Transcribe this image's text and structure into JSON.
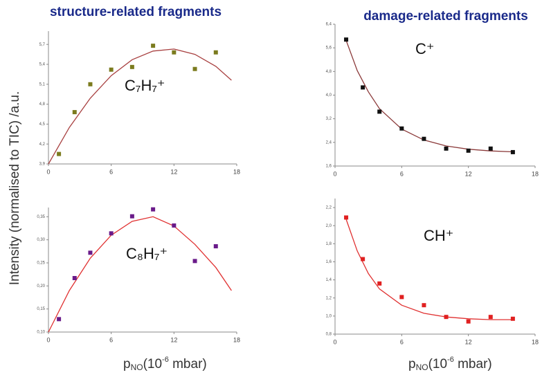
{
  "headers": [
    "structure-related fragments",
    "damage-related fragments"
  ],
  "y_label": "Intensity (normalised to TIC) /a.u.",
  "x_label": [
    "p",
    "NO",
    "(10",
    "-6",
    " mbar)"
  ],
  "chart_data": [
    {
      "type": "scatter",
      "annotation": "C₇H₇⁺",
      "color": "#7b7b1e",
      "fit_color": "#a84040",
      "x": [
        1,
        2.5,
        4,
        6,
        8,
        10,
        12,
        14,
        16
      ],
      "values": [
        4.05,
        4.68,
        5.1,
        5.32,
        5.36,
        5.68,
        5.58,
        5.33,
        5.58
      ],
      "fit_x": [
        0,
        2,
        4,
        6,
        8,
        10,
        12,
        14,
        16,
        17.5
      ],
      "fit_values": [
        3.9,
        4.45,
        4.89,
        5.23,
        5.47,
        5.6,
        5.63,
        5.55,
        5.37,
        5.16
      ],
      "xlim": [
        0,
        18
      ],
      "xticks": [
        0,
        6,
        12,
        18
      ],
      "ylim": [
        3.9,
        5.9
      ],
      "yticks": [
        {
          "value": 3.9,
          "label": "3,9"
        },
        {
          "value": 4.2,
          "label": "4,2"
        },
        {
          "value": 4.5,
          "label": "4,5"
        },
        {
          "value": 4.8,
          "label": "4,8"
        },
        {
          "value": 5.1,
          "label": "5,1"
        },
        {
          "value": 5.4,
          "label": "5,4"
        },
        {
          "value": 5.7,
          "label": "5,7"
        }
      ]
    },
    {
      "type": "scatter",
      "annotation": "C₈H₇⁺",
      "color": "#6a1b8a",
      "fit_color": "#e03030",
      "x": [
        1,
        2.5,
        4,
        6,
        8,
        10,
        12,
        14,
        16
      ],
      "values": [
        0.128,
        0.217,
        0.272,
        0.314,
        0.351,
        0.366,
        0.331,
        0.254,
        0.286
      ],
      "fit_x": [
        0,
        2,
        4,
        6,
        8,
        10,
        12,
        14,
        16,
        17.5
      ],
      "fit_values": [
        0.1,
        0.19,
        0.26,
        0.31,
        0.34,
        0.35,
        0.33,
        0.29,
        0.24,
        0.19
      ],
      "xlim": [
        0,
        18
      ],
      "xticks": [
        0,
        6,
        12,
        18
      ],
      "ylim": [
        0.1,
        0.37
      ],
      "yticks": [
        {
          "value": 0.1,
          "label": "0,10"
        },
        {
          "value": 0.15,
          "label": "0,15"
        },
        {
          "value": 0.2,
          "label": "0,20"
        },
        {
          "value": 0.25,
          "label": "0,25"
        },
        {
          "value": 0.3,
          "label": "0,30"
        },
        {
          "value": 0.35,
          "label": "0,35"
        }
      ]
    },
    {
      "type": "scatter",
      "annotation": "C⁺",
      "color": "#111111",
      "fit_color": "#8b3a3a",
      "x": [
        1,
        2.5,
        4,
        6,
        8,
        10,
        12,
        14,
        16
      ],
      "values": [
        5.88,
        4.26,
        3.44,
        2.87,
        2.52,
        2.19,
        2.12,
        2.19,
        2.07
      ],
      "fit_x": [
        1,
        2,
        3,
        4,
        6,
        8,
        10,
        12,
        14,
        16
      ],
      "fit_values": [
        5.85,
        4.83,
        4.11,
        3.54,
        2.85,
        2.48,
        2.28,
        2.17,
        2.11,
        2.08
      ],
      "xlim": [
        0,
        18
      ],
      "xticks": [
        0,
        6,
        12,
        18
      ],
      "ylim": [
        1.6,
        6.4
      ],
      "yticks": [
        {
          "value": 1.6,
          "label": "1,6"
        },
        {
          "value": 2.4,
          "label": "2,4"
        },
        {
          "value": 3.2,
          "label": "3,2"
        },
        {
          "value": 4.0,
          "label": "4,0"
        },
        {
          "value": 4.8,
          "label": "4,8"
        },
        {
          "value": 5.6,
          "label": "5,6"
        },
        {
          "value": 6.4,
          "label": "6,4"
        }
      ]
    },
    {
      "type": "scatter",
      "annotation": "CH⁺",
      "color": "#e02020",
      "fit_color": "#e03030",
      "x": [
        1,
        2.5,
        4,
        6,
        8,
        10,
        12,
        14,
        16
      ],
      "values": [
        2.09,
        1.63,
        1.36,
        1.21,
        1.12,
        0.99,
        0.94,
        0.99,
        0.97
      ],
      "fit_x": [
        1,
        2,
        3,
        4,
        6,
        8,
        10,
        12,
        14,
        16
      ],
      "fit_values": [
        2.07,
        1.72,
        1.47,
        1.3,
        1.12,
        1.03,
        0.99,
        0.97,
        0.96,
        0.96
      ],
      "xlim": [
        0,
        18
      ],
      "xticks": [
        0,
        6,
        12,
        18
      ],
      "ylim": [
        0.8,
        2.3
      ],
      "yticks": [
        {
          "value": 0.8,
          "label": "0,8"
        },
        {
          "value": 1.0,
          "label": "1,0"
        },
        {
          "value": 1.2,
          "label": "1,2"
        },
        {
          "value": 1.4,
          "label": "1,4"
        },
        {
          "value": 1.6,
          "label": "1,6"
        },
        {
          "value": 1.8,
          "label": "1,8"
        },
        {
          "value": 2.0,
          "label": "2,0"
        },
        {
          "value": 2.2,
          "label": "2,2"
        }
      ]
    }
  ]
}
